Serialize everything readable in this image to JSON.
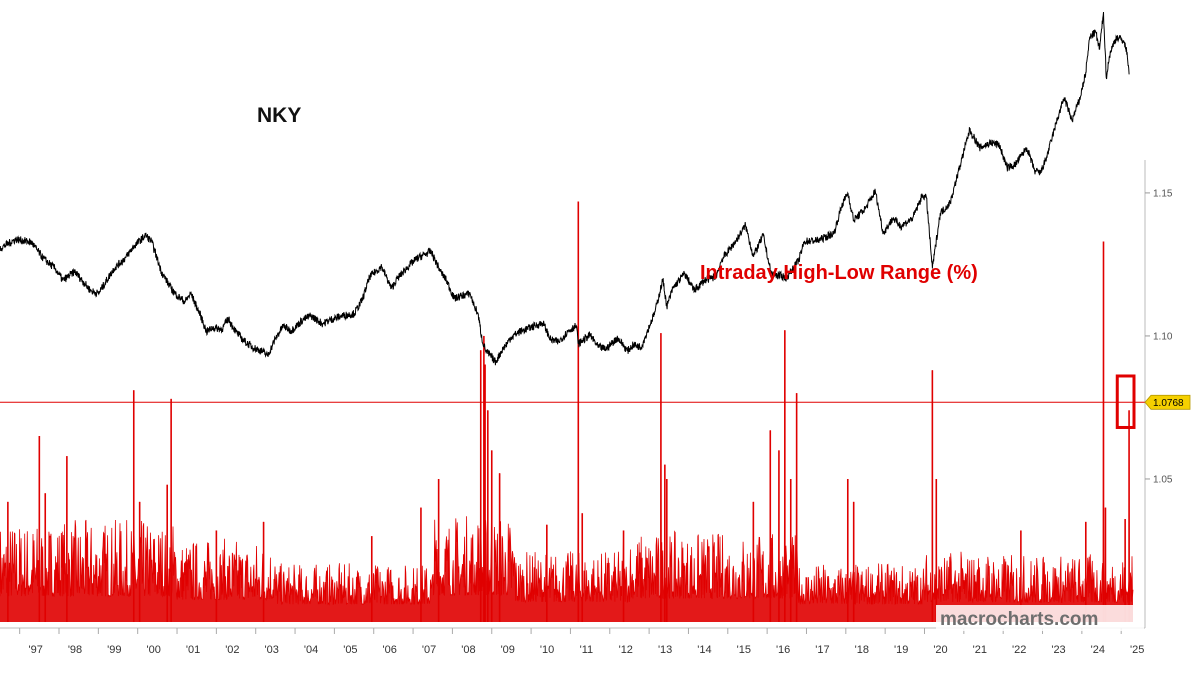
{
  "chart_data": {
    "type": "line",
    "series": [
      {
        "name": "NKY",
        "color": "#000000",
        "points": [
          [
            1996.5,
            18500
          ],
          [
            1996.9,
            19400
          ],
          [
            1997.3,
            19100
          ],
          [
            1997.6,
            17500
          ],
          [
            1997.9,
            16500
          ],
          [
            1998.1,
            15300
          ],
          [
            1998.4,
            16200
          ],
          [
            1998.8,
            14300
          ],
          [
            1999.0,
            14000
          ],
          [
            1999.4,
            16500
          ],
          [
            1999.7,
            17600
          ],
          [
            1999.9,
            18700
          ],
          [
            2000.2,
            19800
          ],
          [
            2000.35,
            19200
          ],
          [
            2000.6,
            16200
          ],
          [
            2000.85,
            14500
          ],
          [
            2001.0,
            13800
          ],
          [
            2001.2,
            13200
          ],
          [
            2001.35,
            14000
          ],
          [
            2001.6,
            11800
          ],
          [
            2001.75,
            10200
          ],
          [
            2001.9,
            10600
          ],
          [
            2002.15,
            10500
          ],
          [
            2002.3,
            11500
          ],
          [
            2002.5,
            10200
          ],
          [
            2002.7,
            9300
          ],
          [
            2002.95,
            8600
          ],
          [
            2003.2,
            8200
          ],
          [
            2003.3,
            7800
          ],
          [
            2003.5,
            9500
          ],
          [
            2003.7,
            10800
          ],
          [
            2003.9,
            10300
          ],
          [
            2004.2,
            11400
          ],
          [
            2004.4,
            11800
          ],
          [
            2004.7,
            11000
          ],
          [
            2004.9,
            11400
          ],
          [
            2005.2,
            11800
          ],
          [
            2005.5,
            12000
          ],
          [
            2005.7,
            13300
          ],
          [
            2005.9,
            15700
          ],
          [
            2006.2,
            16700
          ],
          [
            2006.45,
            14500
          ],
          [
            2006.6,
            15500
          ],
          [
            2006.9,
            16800
          ],
          [
            2007.1,
            17500
          ],
          [
            2007.45,
            18200
          ],
          [
            2007.7,
            16200
          ],
          [
            2007.85,
            15300
          ],
          [
            2008.05,
            13500
          ],
          [
            2008.25,
            13800
          ],
          [
            2008.45,
            14000
          ],
          [
            2008.55,
            12800
          ],
          [
            2008.65,
            12000
          ],
          [
            2008.75,
            9500
          ],
          [
            2008.85,
            8300
          ],
          [
            2009.1,
            7200
          ],
          [
            2009.25,
            8300
          ],
          [
            2009.5,
            9700
          ],
          [
            2009.7,
            10200
          ],
          [
            2009.9,
            10500
          ],
          [
            2010.1,
            10800
          ],
          [
            2010.3,
            11100
          ],
          [
            2010.5,
            9400
          ],
          [
            2010.7,
            9200
          ],
          [
            2010.95,
            10300
          ],
          [
            2011.15,
            10800
          ],
          [
            2011.2,
            9000
          ],
          [
            2011.5,
            9900
          ],
          [
            2011.7,
            8700
          ],
          [
            2011.9,
            8500
          ],
          [
            2012.2,
            9600
          ],
          [
            2012.45,
            8300
          ],
          [
            2012.6,
            8900
          ],
          [
            2012.8,
            8700
          ],
          [
            2012.95,
            10200
          ],
          [
            2013.15,
            12200
          ],
          [
            2013.35,
            15400
          ],
          [
            2013.45,
            12700
          ],
          [
            2013.6,
            14500
          ],
          [
            2013.9,
            16000
          ],
          [
            2014.15,
            14300
          ],
          [
            2014.4,
            15300
          ],
          [
            2014.7,
            15700
          ],
          [
            2014.85,
            17400
          ],
          [
            2015.2,
            19200
          ],
          [
            2015.45,
            20800
          ],
          [
            2015.65,
            17700
          ],
          [
            2015.9,
            19800
          ],
          [
            2016.1,
            16000
          ],
          [
            2016.5,
            15600
          ],
          [
            2016.8,
            17300
          ],
          [
            2016.95,
            19200
          ],
          [
            2017.3,
            19300
          ],
          [
            2017.7,
            20000
          ],
          [
            2017.9,
            22800
          ],
          [
            2018.05,
            24000
          ],
          [
            2018.2,
            21300
          ],
          [
            2018.5,
            22500
          ],
          [
            2018.75,
            24200
          ],
          [
            2018.95,
            20000
          ],
          [
            2019.2,
            21500
          ],
          [
            2019.4,
            20700
          ],
          [
            2019.7,
            21500
          ],
          [
            2019.95,
            23800
          ],
          [
            2020.05,
            23500
          ],
          [
            2020.2,
            16500
          ],
          [
            2020.4,
            22000
          ],
          [
            2020.65,
            23000
          ],
          [
            2020.95,
            27400
          ],
          [
            2021.15,
            30300
          ],
          [
            2021.4,
            28500
          ],
          [
            2021.7,
            29000
          ],
          [
            2021.9,
            28800
          ],
          [
            2022.1,
            26500
          ],
          [
            2022.3,
            26800
          ],
          [
            2022.6,
            28500
          ],
          [
            2022.8,
            26200
          ],
          [
            2022.95,
            26000
          ],
          [
            2023.1,
            27500
          ],
          [
            2023.35,
            31000
          ],
          [
            2023.55,
            33500
          ],
          [
            2023.75,
            31200
          ],
          [
            2023.95,
            33400
          ],
          [
            2024.1,
            36000
          ],
          [
            2024.2,
            39500
          ],
          [
            2024.35,
            40000
          ],
          [
            2024.45,
            38300
          ],
          [
            2024.55,
            42000
          ],
          [
            2024.62,
            35500
          ],
          [
            2024.72,
            38000
          ],
          [
            2024.88,
            39500
          ],
          [
            2025.05,
            39200
          ],
          [
            2025.15,
            38000
          ],
          [
            2025.2,
            35800
          ]
        ]
      },
      {
        "name": "Intraday High-Low Range (%)",
        "color": "#e00000",
        "points": [
          [
            1996.7,
            1.042
          ],
          [
            1997.5,
            1.065
          ],
          [
            1997.65,
            1.045
          ],
          [
            1998.2,
            1.058
          ],
          [
            1999.9,
            1.081
          ],
          [
            2000.05,
            1.042
          ],
          [
            2000.75,
            1.048
          ],
          [
            2000.85,
            1.078
          ],
          [
            2002.0,
            1.032
          ],
          [
            2003.2,
            1.035
          ],
          [
            2005.95,
            1.03
          ],
          [
            2007.2,
            1.04
          ],
          [
            2007.65,
            1.05
          ],
          [
            2008.72,
            1.095
          ],
          [
            2008.8,
            1.1
          ],
          [
            2008.83,
            1.09
          ],
          [
            2008.9,
            1.074
          ],
          [
            2009.0,
            1.06
          ],
          [
            2009.2,
            1.052
          ],
          [
            2010.4,
            1.034
          ],
          [
            2011.2,
            1.147
          ],
          [
            2011.3,
            1.038
          ],
          [
            2012.35,
            1.032
          ],
          [
            2013.3,
            1.101
          ],
          [
            2013.4,
            1.055
          ],
          [
            2013.45,
            1.05
          ],
          [
            2015.65,
            1.042
          ],
          [
            2016.08,
            1.067
          ],
          [
            2016.3,
            1.06
          ],
          [
            2016.45,
            1.102
          ],
          [
            2016.6,
            1.05
          ],
          [
            2016.75,
            1.08
          ],
          [
            2018.05,
            1.05
          ],
          [
            2018.2,
            1.042
          ],
          [
            2020.2,
            1.088
          ],
          [
            2020.3,
            1.05
          ],
          [
            2022.45,
            1.032
          ],
          [
            2024.1,
            1.035
          ],
          [
            2024.55,
            1.133
          ],
          [
            2024.6,
            1.04
          ],
          [
            2025.1,
            1.036
          ],
          [
            2025.2,
            1.074
          ]
        ]
      }
    ],
    "ylim": [
      1.0,
      1.165
    ],
    "xlim": [
      1996.5,
      2025.3
    ],
    "y_ticks": [
      "1.05",
      "1.10",
      "1.15"
    ],
    "x_ticks": [
      "'97",
      "'98",
      "'99",
      "'00",
      "'01",
      "'02",
      "'03",
      "'04",
      "'05",
      "'06",
      "'07",
      "'08",
      "'09",
      "'10",
      "'11",
      "'12",
      "'13",
      "'14",
      "'15",
      "'16",
      "'17",
      "'18",
      "'19",
      "'20",
      "'21",
      "'22",
      "'23",
      "'24",
      "'25"
    ],
    "reference_line": {
      "value": 1.0768,
      "label": "1.0768",
      "color": "#e00000",
      "label_color": "#f5d000"
    },
    "highlight_box": {
      "x_range": [
        2024.9,
        2025.5
      ],
      "y_range": [
        1.068,
        1.086
      ],
      "color": "#e00000"
    },
    "annotations": {
      "nky": "NKY",
      "range": "Intraday High-Low Range (%)",
      "watermark": "macrocharts.com"
    },
    "grid": false,
    "legend": "none"
  }
}
